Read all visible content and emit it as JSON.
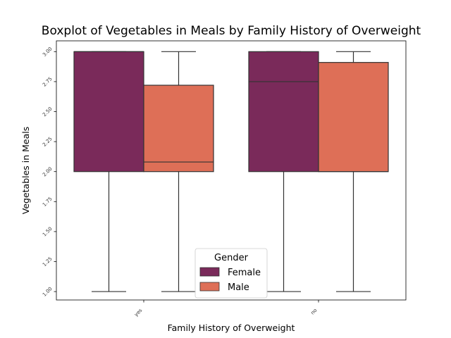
{
  "chart_data": {
    "type": "boxplot",
    "title": "Boxplot of Vegetables in Meals by Family History of Overweight",
    "xlabel": "Family History of Overweight",
    "ylabel": "Vegetables in Meals",
    "categories": [
      "yes",
      "no"
    ],
    "ylim": [
      0.93,
      3.09
    ],
    "yticks": [
      1.0,
      1.25,
      1.5,
      1.75,
      2.0,
      2.25,
      2.5,
      2.75,
      3.0
    ],
    "ytick_labels": [
      "1.00",
      "1.25",
      "1.50",
      "1.75",
      "2.00",
      "2.25",
      "2.50",
      "2.75",
      "3.00"
    ],
    "legend": {
      "title": "Gender",
      "position": "lower-center"
    },
    "series": [
      {
        "name": "Female",
        "color": "#7a2a5a",
        "boxes": [
          {
            "whislo": 1.0,
            "q1": 2.0,
            "med": 3.0,
            "q3": 3.0,
            "whishi": 3.0
          },
          {
            "whislo": 1.0,
            "q1": 2.0,
            "med": 2.75,
            "q3": 3.0,
            "whishi": 3.0
          }
        ]
      },
      {
        "name": "Male",
        "color": "#de6f57",
        "boxes": [
          {
            "whislo": 1.0,
            "q1": 2.0,
            "med": 2.08,
            "q3": 2.72,
            "whishi": 3.0
          },
          {
            "whislo": 1.0,
            "q1": 2.0,
            "med": 2.0,
            "q3": 2.91,
            "whishi": 3.0
          }
        ]
      }
    ]
  }
}
